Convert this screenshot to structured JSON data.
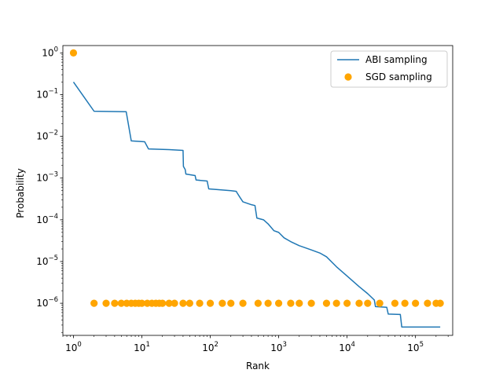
{
  "chart_data": {
    "type": "line",
    "xlabel": "Rank",
    "ylabel": "Probability",
    "xscale": "log",
    "yscale": "log",
    "xlim": [
      0.7,
      350000
    ],
    "ylim": [
      1.7e-07,
      1.5
    ],
    "grid": false,
    "legend_position": "top-right",
    "x_ticks": [
      {
        "value": 1,
        "base": "10",
        "exp": "0"
      },
      {
        "value": 10,
        "base": "10",
        "exp": "1"
      },
      {
        "value": 100,
        "base": "10",
        "exp": "2"
      },
      {
        "value": 1000,
        "base": "10",
        "exp": "3"
      },
      {
        "value": 10000,
        "base": "10",
        "exp": "4"
      },
      {
        "value": 100000,
        "base": "10",
        "exp": "5"
      }
    ],
    "y_ticks": [
      {
        "value": 1e-06,
        "base": "10",
        "exp": "−6"
      },
      {
        "value": 1e-05,
        "base": "10",
        "exp": "−5"
      },
      {
        "value": 0.0001,
        "base": "10",
        "exp": "−4"
      },
      {
        "value": 0.001,
        "base": "10",
        "exp": "−3"
      },
      {
        "value": 0.01,
        "base": "10",
        "exp": "−2"
      },
      {
        "value": 0.1,
        "base": "10",
        "exp": "−1"
      },
      {
        "value": 1,
        "base": "10",
        "exp": "0"
      }
    ],
    "series": [
      {
        "name": "ABI sampling",
        "kind": "line",
        "color": "#1f77b4",
        "points": [
          [
            1,
            0.2
          ],
          [
            2,
            0.04
          ],
          [
            5.9,
            0.039
          ],
          [
            7,
            0.0078
          ],
          [
            11,
            0.0074
          ],
          [
            12.5,
            0.005
          ],
          [
            25,
            0.0048
          ],
          [
            40,
            0.0046
          ],
          [
            40.5,
            0.0019
          ],
          [
            43,
            0.0016
          ],
          [
            44,
            0.00125
          ],
          [
            60,
            0.00115
          ],
          [
            62,
            0.0009
          ],
          [
            90,
            0.00085
          ],
          [
            95,
            0.00055
          ],
          [
            200,
            0.0005
          ],
          [
            240,
            0.00048
          ],
          [
            245,
            0.00045
          ],
          [
            270,
            0.00035
          ],
          [
            300,
            0.00027
          ],
          [
            400,
            0.00023
          ],
          [
            450,
            0.00022
          ],
          [
            480,
            0.00011
          ],
          [
            600,
            0.0001
          ],
          [
            700,
            8e-05
          ],
          [
            850,
            5.5e-05
          ],
          [
            1000,
            5e-05
          ],
          [
            1200,
            3.7e-05
          ],
          [
            1500,
            3e-05
          ],
          [
            2000,
            2.4e-05
          ],
          [
            3000,
            1.9e-05
          ],
          [
            4000,
            1.6e-05
          ],
          [
            5000,
            1.3e-05
          ],
          [
            7000,
            7.5e-06
          ],
          [
            10000,
            4.5e-06
          ],
          [
            15000,
            2.5e-06
          ],
          [
            20000,
            1.7e-06
          ],
          [
            25000,
            1.2e-06
          ],
          [
            26000,
            8.3e-07
          ],
          [
            38000,
            8e-07
          ],
          [
            40000,
            5.5e-07
          ],
          [
            60000,
            5.4e-07
          ],
          [
            63000,
            2.7e-07
          ],
          [
            230000,
            2.7e-07
          ]
        ]
      },
      {
        "name": "SGD sampling",
        "kind": "scatter",
        "color": "#ffa500",
        "points": [
          [
            1,
            1
          ],
          [
            2,
            1e-06
          ],
          [
            3,
            1e-06
          ],
          [
            4,
            1e-06
          ],
          [
            5,
            1e-06
          ],
          [
            6,
            1e-06
          ],
          [
            7,
            1e-06
          ],
          [
            8,
            1e-06
          ],
          [
            9,
            1e-06
          ],
          [
            10,
            1e-06
          ],
          [
            12,
            1e-06
          ],
          [
            14,
            1e-06
          ],
          [
            16,
            1e-06
          ],
          [
            18,
            1e-06
          ],
          [
            20,
            1e-06
          ],
          [
            25,
            1e-06
          ],
          [
            30,
            1e-06
          ],
          [
            40,
            1e-06
          ],
          [
            50,
            1e-06
          ],
          [
            70,
            1e-06
          ],
          [
            100,
            1e-06
          ],
          [
            150,
            1e-06
          ],
          [
            200,
            1e-06
          ],
          [
            300,
            1e-06
          ],
          [
            500,
            1e-06
          ],
          [
            700,
            1e-06
          ],
          [
            1000,
            1e-06
          ],
          [
            1500,
            1e-06
          ],
          [
            2000,
            1e-06
          ],
          [
            3000,
            1e-06
          ],
          [
            5000,
            1e-06
          ],
          [
            7000,
            1e-06
          ],
          [
            10000,
            1e-06
          ],
          [
            15000,
            1e-06
          ],
          [
            20000,
            1e-06
          ],
          [
            30000,
            1e-06
          ],
          [
            50000,
            1e-06
          ],
          [
            70000,
            1e-06
          ],
          [
            100000,
            1e-06
          ],
          [
            150000,
            1e-06
          ],
          [
            200000,
            1e-06
          ],
          [
            230000,
            1e-06
          ]
        ]
      }
    ]
  }
}
